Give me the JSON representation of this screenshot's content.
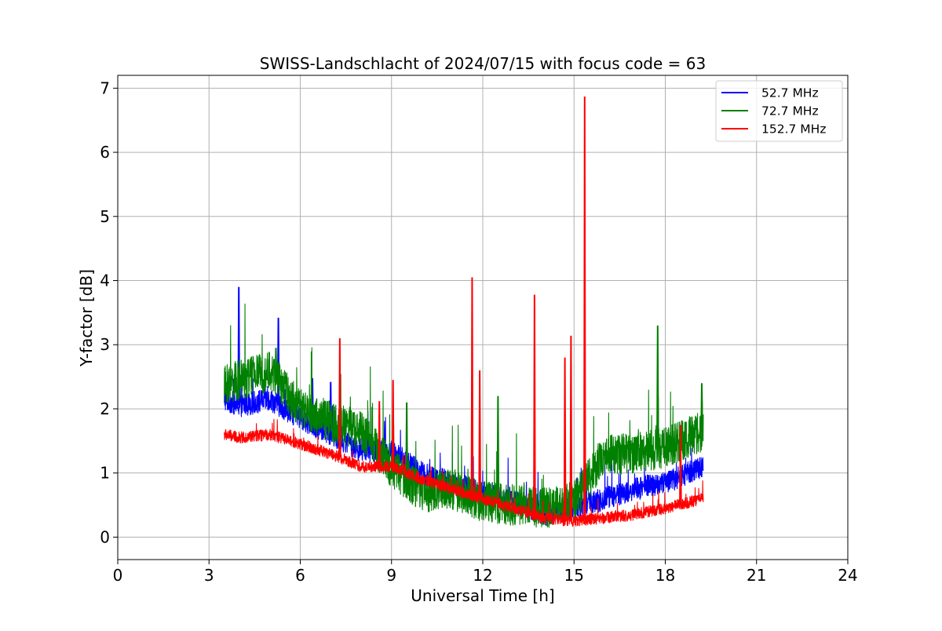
{
  "chart_data": {
    "type": "line",
    "title": "SWISS-Landschlacht of 2024/07/15 with focus code = 63",
    "xlabel": "Universal Time [h]",
    "ylabel": "Y-factor [dB]",
    "xlim": [
      0,
      24
    ],
    "ylim": [
      -0.35,
      7.2
    ],
    "xticks": [
      0,
      3,
      6,
      9,
      12,
      15,
      18,
      21,
      24
    ],
    "yticks": [
      0,
      1,
      2,
      3,
      4,
      5,
      6,
      7
    ],
    "grid": true,
    "legend_position": "top-right",
    "x_range": [
      3.5,
      19.25
    ],
    "series": [
      {
        "name": "  52.7 MHz",
        "color": "#0000ff",
        "points": [
          [
            3.5,
            2.15
          ],
          [
            4.0,
            2.05
          ],
          [
            5.0,
            2.15
          ],
          [
            6.0,
            1.85
          ],
          [
            7.0,
            1.6
          ],
          [
            8.0,
            1.35
          ],
          [
            9.0,
            1.35
          ],
          [
            10.0,
            1.0
          ],
          [
            11.0,
            0.85
          ],
          [
            12.0,
            0.7
          ],
          [
            13.0,
            0.55
          ],
          [
            14.0,
            0.35
          ],
          [
            15.0,
            0.45
          ],
          [
            16.0,
            0.6
          ],
          [
            17.0,
            0.75
          ],
          [
            18.0,
            0.85
          ],
          [
            19.25,
            1.1
          ]
        ],
        "spikes": [
          [
            3.98,
            3.9
          ],
          [
            5.28,
            3.42
          ],
          [
            6.4,
            2.48
          ],
          [
            7.0,
            2.42
          ]
        ]
      },
      {
        "name": "  72.7 MHz",
        "color": "#008000",
        "points": [
          [
            3.5,
            2.35
          ],
          [
            4.0,
            2.45
          ],
          [
            5.0,
            2.6
          ],
          [
            6.0,
            2.0
          ],
          [
            7.0,
            1.8
          ],
          [
            8.0,
            1.65
          ],
          [
            9.0,
            1.1
          ],
          [
            10.0,
            0.7
          ],
          [
            11.0,
            0.75
          ],
          [
            12.0,
            0.55
          ],
          [
            13.0,
            0.5
          ],
          [
            14.0,
            0.45
          ],
          [
            15.0,
            0.55
          ],
          [
            16.0,
            1.3
          ],
          [
            17.0,
            1.3
          ],
          [
            18.0,
            1.4
          ],
          [
            19.25,
            1.65
          ]
        ],
        "spikes": [
          [
            5.2,
            2.95
          ],
          [
            9.5,
            2.1
          ],
          [
            12.5,
            2.2
          ],
          [
            17.75,
            3.3
          ],
          [
            19.2,
            2.4
          ]
        ]
      },
      {
        "name": "152.7 MHz",
        "color": "#ff0000",
        "points": [
          [
            3.5,
            1.6
          ],
          [
            4.0,
            1.55
          ],
          [
            5.0,
            1.6
          ],
          [
            6.0,
            1.45
          ],
          [
            7.0,
            1.3
          ],
          [
            8.0,
            1.1
          ],
          [
            9.0,
            1.1
          ],
          [
            10.0,
            0.9
          ],
          [
            11.0,
            0.75
          ],
          [
            12.0,
            0.6
          ],
          [
            13.0,
            0.45
          ],
          [
            14.0,
            0.3
          ],
          [
            15.0,
            0.25
          ],
          [
            16.0,
            0.3
          ],
          [
            17.0,
            0.35
          ],
          [
            18.0,
            0.45
          ],
          [
            19.25,
            0.6
          ]
        ],
        "spikes": [
          [
            7.3,
            3.1
          ],
          [
            8.6,
            2.12
          ],
          [
            9.05,
            2.45
          ],
          [
            11.65,
            4.05
          ],
          [
            11.9,
            2.6
          ],
          [
            13.7,
            3.78
          ],
          [
            14.7,
            2.8
          ],
          [
            14.9,
            3.14
          ],
          [
            15.35,
            6.87
          ],
          [
            18.5,
            1.75
          ]
        ]
      }
    ]
  }
}
